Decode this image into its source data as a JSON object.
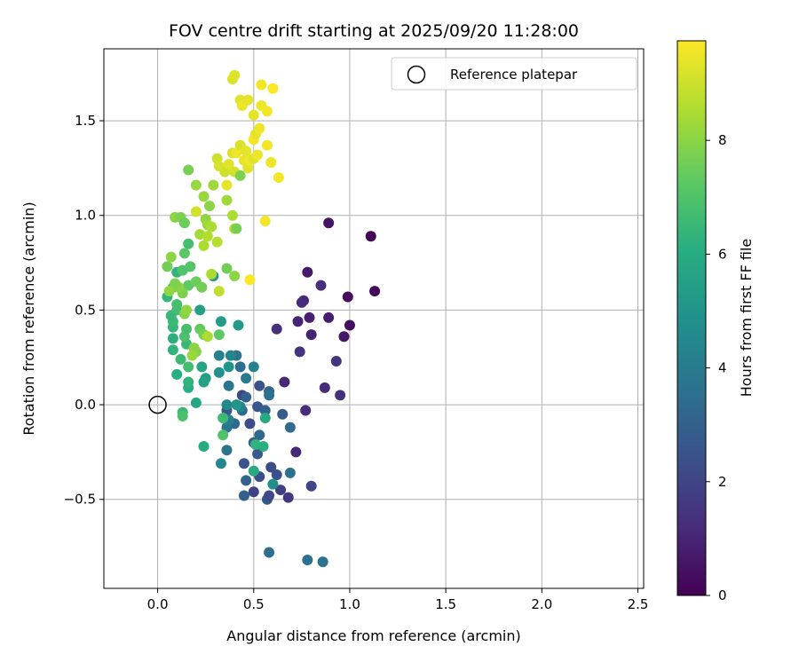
{
  "chart_data": {
    "type": "scatter",
    "title": "FOV centre drift starting at 2025/09/20 11:28:00",
    "xlabel": "Angular distance from reference (arcmin)",
    "ylabel": "Rotation from reference (arcmin)",
    "xlim": [
      -0.28,
      2.53
    ],
    "ylim": [
      -0.97,
      1.88
    ],
    "xticks": [
      0.0,
      0.5,
      1.0,
      1.5,
      2.0,
      2.5
    ],
    "xtick_labels": [
      "0.0",
      "0.5",
      "1.0",
      "1.5",
      "2.0",
      "2.5"
    ],
    "yticks": [
      -0.5,
      0.0,
      0.5,
      1.0,
      1.5
    ],
    "ytick_labels": [
      "−0.5",
      "0.0",
      "0.5",
      "1.0",
      "1.5"
    ],
    "grid": true,
    "legend": {
      "position": "top-right",
      "label": "Reference platepar"
    },
    "reference_point": {
      "x": 0.0,
      "y": 0.0
    },
    "colorbar": {
      "label": "Hours from first FF file",
      "range": [
        0,
        9.75
      ],
      "ticks": [
        0,
        2,
        4,
        6,
        8
      ],
      "tick_labels": [
        "0",
        "2",
        "4",
        "6",
        "8"
      ],
      "colormap": "viridis"
    },
    "points": [
      {
        "x": 1.11,
        "y": 0.89,
        "t": 0.1
      },
      {
        "x": 1.13,
        "y": 0.6,
        "t": 0.2
      },
      {
        "x": 0.99,
        "y": 0.57,
        "t": 0.3
      },
      {
        "x": 1.0,
        "y": 0.42,
        "t": 0.4
      },
      {
        "x": 0.89,
        "y": 0.96,
        "t": 0.5
      },
      {
        "x": 0.97,
        "y": 0.36,
        "t": 0.6
      },
      {
        "x": 0.78,
        "y": 0.7,
        "t": 0.7
      },
      {
        "x": 0.89,
        "y": 0.46,
        "t": 0.8
      },
      {
        "x": 0.79,
        "y": 0.46,
        "t": 0.9
      },
      {
        "x": 0.8,
        "y": 0.37,
        "t": 0.95
      },
      {
        "x": 0.73,
        "y": 0.44,
        "t": 1.0
      },
      {
        "x": 0.76,
        "y": 0.55,
        "t": 1.1
      },
      {
        "x": 0.75,
        "y": 0.54,
        "t": 1.2
      },
      {
        "x": 0.85,
        "y": 0.63,
        "t": 1.3
      },
      {
        "x": 0.74,
        "y": 0.28,
        "t": 1.4
      },
      {
        "x": 0.93,
        "y": 0.23,
        "t": 1.5
      },
      {
        "x": 0.62,
        "y": 0.4,
        "t": 1.3
      },
      {
        "x": 0.66,
        "y": 0.12,
        "t": 1.1
      },
      {
        "x": 0.87,
        "y": 0.09,
        "t": 1.2
      },
      {
        "x": 0.95,
        "y": 0.05,
        "t": 1.3
      },
      {
        "x": 0.77,
        "y": -0.03,
        "t": 1.2
      },
      {
        "x": 0.72,
        "y": -0.25,
        "t": 1.1
      },
      {
        "x": 0.68,
        "y": -0.49,
        "t": 1.5
      },
      {
        "x": 0.8,
        "y": -0.43,
        "t": 2.0
      },
      {
        "x": 0.64,
        "y": -0.45,
        "t": 1.8
      },
      {
        "x": 0.59,
        "y": -0.33,
        "t": 2.2
      },
      {
        "x": 0.62,
        "y": -0.37,
        "t": 2.4
      },
      {
        "x": 0.5,
        "y": -0.46,
        "t": 1.9
      },
      {
        "x": 0.53,
        "y": -0.38,
        "t": 2.3
      },
      {
        "x": 0.57,
        "y": -0.5,
        "t": 2.6
      },
      {
        "x": 0.58,
        "y": -0.48,
        "t": 2.1
      },
      {
        "x": 0.45,
        "y": -0.48,
        "t": 3.0
      },
      {
        "x": 0.46,
        "y": -0.4,
        "t": 3.1
      },
      {
        "x": 0.45,
        "y": -0.31,
        "t": 2.5
      },
      {
        "x": 0.52,
        "y": -0.26,
        "t": 2.7
      },
      {
        "x": 0.5,
        "y": -0.2,
        "t": 2.9
      },
      {
        "x": 0.53,
        "y": -0.16,
        "t": 3.3
      },
      {
        "x": 0.48,
        "y": -0.1,
        "t": 2.2
      },
      {
        "x": 0.52,
        "y": -0.01,
        "t": 2.6
      },
      {
        "x": 0.44,
        "y": 0.05,
        "t": 2.0
      },
      {
        "x": 0.53,
        "y": 0.1,
        "t": 2.5
      },
      {
        "x": 0.58,
        "y": 0.07,
        "t": 3.2
      },
      {
        "x": 0.58,
        "y": 0.05,
        "t": 3.6
      },
      {
        "x": 0.56,
        "y": -0.03,
        "t": 3.0
      },
      {
        "x": 0.65,
        "y": -0.05,
        "t": 2.8
      },
      {
        "x": 0.69,
        "y": -0.12,
        "t": 3.4
      },
      {
        "x": 0.69,
        "y": -0.36,
        "t": 3.5
      },
      {
        "x": 0.6,
        "y": -0.42,
        "t": 4.8
      },
      {
        "x": 0.58,
        "y": -0.78,
        "t": 3.5
      },
      {
        "x": 0.78,
        "y": -0.82,
        "t": 3.6
      },
      {
        "x": 0.86,
        "y": -0.83,
        "t": 3.7
      },
      {
        "x": 0.36,
        "y": -0.03,
        "t": 2.6
      },
      {
        "x": 0.4,
        "y": -0.1,
        "t": 3.3
      },
      {
        "x": 0.44,
        "y": -0.03,
        "t": 3.4
      },
      {
        "x": 0.36,
        "y": -0.12,
        "t": 3.8
      },
      {
        "x": 0.36,
        "y": -0.24,
        "t": 3.7
      },
      {
        "x": 0.33,
        "y": -0.31,
        "t": 4.5
      },
      {
        "x": 0.37,
        "y": -0.08,
        "t": 4.2
      },
      {
        "x": 0.46,
        "y": 0.04,
        "t": 3.0
      },
      {
        "x": 0.43,
        "y": -0.01,
        "t": 4.5
      },
      {
        "x": 0.41,
        "y": 0.0,
        "t": 5.0
      },
      {
        "x": 0.36,
        "y": 0.0,
        "t": 4.6
      },
      {
        "x": 0.37,
        "y": 0.1,
        "t": 3.8
      },
      {
        "x": 0.46,
        "y": 0.14,
        "t": 4.0
      },
      {
        "x": 0.5,
        "y": 0.2,
        "t": 4.2
      },
      {
        "x": 0.43,
        "y": 0.2,
        "t": 3.5
      },
      {
        "x": 0.41,
        "y": 0.26,
        "t": 3.7
      },
      {
        "x": 0.38,
        "y": 0.26,
        "t": 4.4
      },
      {
        "x": 0.32,
        "y": 0.26,
        "t": 4.3
      },
      {
        "x": 0.37,
        "y": 0.2,
        "t": 5.0
      },
      {
        "x": 0.32,
        "y": 0.17,
        "t": 4.8
      },
      {
        "x": 0.25,
        "y": 0.14,
        "t": 5.4
      },
      {
        "x": 0.24,
        "y": 0.12,
        "t": 5.6
      },
      {
        "x": 0.23,
        "y": 0.2,
        "t": 5.7
      },
      {
        "x": 0.33,
        "y": 0.44,
        "t": 5.3
      },
      {
        "x": 0.42,
        "y": 0.42,
        "t": 5.2
      },
      {
        "x": 0.29,
        "y": 0.68,
        "t": 5.0
      },
      {
        "x": 0.22,
        "y": 0.5,
        "t": 5.5
      },
      {
        "x": 0.2,
        "y": 0.01,
        "t": 5.8
      },
      {
        "x": 0.24,
        "y": -0.22,
        "t": 5.9
      },
      {
        "x": 0.5,
        "y": -0.35,
        "t": 5.9
      },
      {
        "x": 0.55,
        "y": -0.22,
        "t": 6.1
      },
      {
        "x": 0.51,
        "y": -0.21,
        "t": 6.3
      },
      {
        "x": 0.56,
        "y": -0.07,
        "t": 5.9
      },
      {
        "x": 0.34,
        "y": -0.07,
        "t": 6.6
      },
      {
        "x": 0.34,
        "y": -0.16,
        "t": 7.0
      },
      {
        "x": 0.13,
        "y": -0.04,
        "t": 6.5
      },
      {
        "x": 0.13,
        "y": -0.06,
        "t": 6.9
      },
      {
        "x": 0.16,
        "y": 0.09,
        "t": 6.1
      },
      {
        "x": 0.16,
        "y": 0.12,
        "t": 6.3
      },
      {
        "x": 0.1,
        "y": 0.16,
        "t": 6.1
      },
      {
        "x": 0.16,
        "y": 0.2,
        "t": 6.7
      },
      {
        "x": 0.12,
        "y": 0.24,
        "t": 6.6
      },
      {
        "x": 0.08,
        "y": 0.29,
        "t": 6.3
      },
      {
        "x": 0.15,
        "y": 0.32,
        "t": 6.5
      },
      {
        "x": 0.08,
        "y": 0.35,
        "t": 6.2
      },
      {
        "x": 0.14,
        "y": 0.36,
        "t": 6.9
      },
      {
        "x": 0.08,
        "y": 0.41,
        "t": 6.4
      },
      {
        "x": 0.15,
        "y": 0.4,
        "t": 6.8
      },
      {
        "x": 0.08,
        "y": 0.44,
        "t": 6.6
      },
      {
        "x": 0.07,
        "y": 0.47,
        "t": 6.5
      },
      {
        "x": 0.1,
        "y": 0.5,
        "t": 6.7
      },
      {
        "x": 0.1,
        "y": 0.53,
        "t": 6.8
      },
      {
        "x": 0.05,
        "y": 0.57,
        "t": 6.4
      },
      {
        "x": 0.08,
        "y": 0.62,
        "t": 6.7
      },
      {
        "x": 0.1,
        "y": 0.7,
        "t": 6.3
      },
      {
        "x": 0.13,
        "y": 0.71,
        "t": 7.0
      },
      {
        "x": 0.16,
        "y": 0.85,
        "t": 6.8
      },
      {
        "x": 0.14,
        "y": 0.8,
        "t": 7.2
      },
      {
        "x": 0.17,
        "y": 0.73,
        "t": 7.1
      },
      {
        "x": 0.16,
        "y": 0.63,
        "t": 7.3
      },
      {
        "x": 0.2,
        "y": 0.65,
        "t": 7.5
      },
      {
        "x": 0.23,
        "y": 0.62,
        "t": 7.6
      },
      {
        "x": 0.22,
        "y": 0.4,
        "t": 7.4
      },
      {
        "x": 0.24,
        "y": 0.37,
        "t": 7.7
      },
      {
        "x": 0.2,
        "y": 0.28,
        "t": 7.9
      },
      {
        "x": 0.19,
        "y": 0.3,
        "t": 8.0
      },
      {
        "x": 0.18,
        "y": 0.26,
        "t": 8.2
      },
      {
        "x": 0.14,
        "y": 0.48,
        "t": 7.9
      },
      {
        "x": 0.15,
        "y": 0.5,
        "t": 8.1
      },
      {
        "x": 0.13,
        "y": 0.59,
        "t": 7.8
      },
      {
        "x": 0.11,
        "y": 0.62,
        "t": 8.0
      },
      {
        "x": 0.09,
        "y": 0.64,
        "t": 7.8
      },
      {
        "x": 0.06,
        "y": 0.6,
        "t": 8.1
      },
      {
        "x": 0.05,
        "y": 0.73,
        "t": 7.6
      },
      {
        "x": 0.07,
        "y": 0.78,
        "t": 8.0
      },
      {
        "x": 0.09,
        "y": 0.99,
        "t": 8.0
      },
      {
        "x": 0.12,
        "y": 0.99,
        "t": 7.8
      },
      {
        "x": 0.14,
        "y": 0.96,
        "t": 7.5
      },
      {
        "x": 0.16,
        "y": 1.24,
        "t": 7.7
      },
      {
        "x": 0.2,
        "y": 1.16,
        "t": 8.2
      },
      {
        "x": 0.24,
        "y": 1.1,
        "t": 8.2
      },
      {
        "x": 0.27,
        "y": 1.05,
        "t": 8.0
      },
      {
        "x": 0.29,
        "y": 1.16,
        "t": 8.3
      },
      {
        "x": 0.25,
        "y": 0.98,
        "t": 8.1
      },
      {
        "x": 0.26,
        "y": 0.95,
        "t": 8.3
      },
      {
        "x": 0.28,
        "y": 0.94,
        "t": 8.5
      },
      {
        "x": 0.22,
        "y": 0.9,
        "t": 8.4
      },
      {
        "x": 0.24,
        "y": 0.84,
        "t": 8.5
      },
      {
        "x": 0.26,
        "y": 0.89,
        "t": 8.6
      },
      {
        "x": 0.31,
        "y": 0.86,
        "t": 8.7
      },
      {
        "x": 0.28,
        "y": 0.69,
        "t": 8.5
      },
      {
        "x": 0.36,
        "y": 0.72,
        "t": 7.6
      },
      {
        "x": 0.4,
        "y": 0.68,
        "t": 8.0
      },
      {
        "x": 0.32,
        "y": 0.6,
        "t": 8.8
      },
      {
        "x": 0.32,
        "y": 0.37,
        "t": 7.3
      },
      {
        "x": 0.26,
        "y": 0.36,
        "t": 8.5
      },
      {
        "x": 0.36,
        "y": 1.08,
        "t": 8.3
      },
      {
        "x": 0.39,
        "y": 1.0,
        "t": 8.5
      },
      {
        "x": 0.4,
        "y": 0.93,
        "t": 8.8
      },
      {
        "x": 0.41,
        "y": 0.93,
        "t": 7.7
      },
      {
        "x": 0.2,
        "y": 1.02,
        "t": 9.1
      },
      {
        "x": 0.31,
        "y": 1.3,
        "t": 9.0
      },
      {
        "x": 0.32,
        "y": 1.26,
        "t": 9.2
      },
      {
        "x": 0.35,
        "y": 1.23,
        "t": 9.0
      },
      {
        "x": 0.37,
        "y": 1.27,
        "t": 9.3
      },
      {
        "x": 0.4,
        "y": 1.23,
        "t": 9.1
      },
      {
        "x": 0.43,
        "y": 1.21,
        "t": 7.8
      },
      {
        "x": 0.36,
        "y": 1.16,
        "t": 9.4
      },
      {
        "x": 0.39,
        "y": 1.33,
        "t": 9.2
      },
      {
        "x": 0.41,
        "y": 1.33,
        "t": 9.5
      },
      {
        "x": 0.45,
        "y": 1.29,
        "t": 9.4
      },
      {
        "x": 0.47,
        "y": 1.25,
        "t": 9.3
      },
      {
        "x": 0.48,
        "y": 1.29,
        "t": 9.6
      },
      {
        "x": 0.5,
        "y": 1.3,
        "t": 9.3
      },
      {
        "x": 0.52,
        "y": 1.32,
        "t": 9.5
      },
      {
        "x": 0.43,
        "y": 1.37,
        "t": 9.2
      },
      {
        "x": 0.46,
        "y": 1.34,
        "t": 9.4
      },
      {
        "x": 0.5,
        "y": 1.4,
        "t": 9.6
      },
      {
        "x": 0.51,
        "y": 1.43,
        "t": 9.4
      },
      {
        "x": 0.53,
        "y": 1.46,
        "t": 9.5
      },
      {
        "x": 0.57,
        "y": 1.37,
        "t": 9.6
      },
      {
        "x": 0.59,
        "y": 1.28,
        "t": 9.5
      },
      {
        "x": 0.63,
        "y": 1.2,
        "t": 9.6
      },
      {
        "x": 0.56,
        "y": 0.97,
        "t": 9.6
      },
      {
        "x": 0.48,
        "y": 0.66,
        "t": 9.7
      },
      {
        "x": 0.5,
        "y": 1.53,
        "t": 9.4
      },
      {
        "x": 0.54,
        "y": 1.58,
        "t": 9.5
      },
      {
        "x": 0.57,
        "y": 1.55,
        "t": 9.6
      },
      {
        "x": 0.43,
        "y": 1.61,
        "t": 9.3
      },
      {
        "x": 0.44,
        "y": 1.58,
        "t": 9.5
      },
      {
        "x": 0.47,
        "y": 1.61,
        "t": 9.4
      },
      {
        "x": 0.39,
        "y": 1.72,
        "t": 9.2
      },
      {
        "x": 0.4,
        "y": 1.74,
        "t": 9.3
      },
      {
        "x": 0.54,
        "y": 1.69,
        "t": 9.6
      },
      {
        "x": 0.6,
        "y": 1.67,
        "t": 9.7
      }
    ]
  }
}
